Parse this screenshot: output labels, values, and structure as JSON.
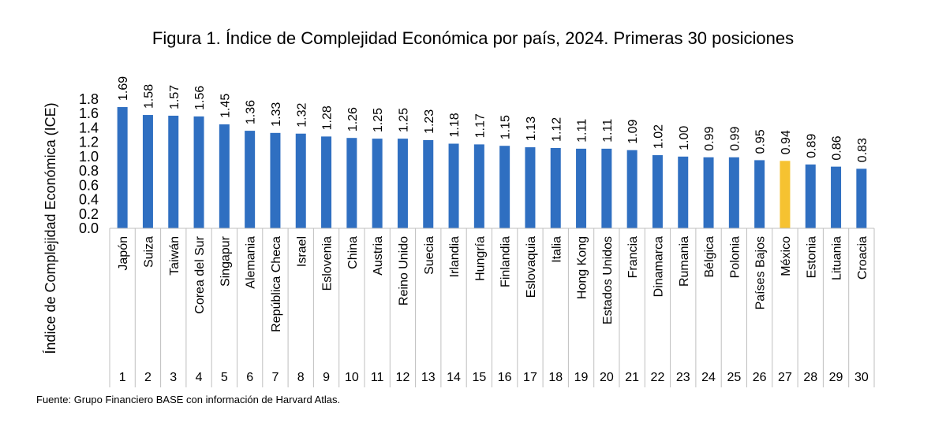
{
  "chart_data": {
    "type": "bar",
    "title": "Figura 1. Índice de Complejidad Económica por país, 2024. Primeras 30 posiciones",
    "ylabel": "Índice de Complejidad Económica (ICE)",
    "xlabel": "",
    "ylim": [
      0,
      1.8
    ],
    "yticks": [
      "0.0",
      "0.2",
      "0.4",
      "0.6",
      "0.8",
      "1.0",
      "1.2",
      "1.4",
      "1.6",
      "1.8"
    ],
    "categories": [
      "Japón",
      "Suiza",
      "Taiwán",
      "Corea del Sur",
      "Singapur",
      "Alemania",
      "República Checa",
      "Israel",
      "Eslovenia",
      "China",
      "Austria",
      "Reino Unido",
      "Suecia",
      "Irlandia",
      "Hungría",
      "Finlandia",
      "Eslovaquia",
      "Italia",
      "Hong Kong",
      "Estados Unidos",
      "Francia",
      "Dinamarca",
      "Rumania",
      "Bélgica",
      "Polonia",
      "Países Bajos",
      "México",
      "Estonia",
      "Lituania",
      "Croacia"
    ],
    "ranks": [
      "1",
      "2",
      "3",
      "4",
      "5",
      "6",
      "7",
      "8",
      "9",
      "10",
      "11",
      "12",
      "13",
      "14",
      "15",
      "16",
      "17",
      "18",
      "19",
      "20",
      "21",
      "22",
      "23",
      "24",
      "25",
      "26",
      "27",
      "28",
      "29",
      "30"
    ],
    "values": [
      1.69,
      1.58,
      1.57,
      1.56,
      1.45,
      1.36,
      1.33,
      1.32,
      1.28,
      1.26,
      1.25,
      1.25,
      1.23,
      1.18,
      1.17,
      1.15,
      1.13,
      1.12,
      1.11,
      1.11,
      1.09,
      1.02,
      1.0,
      0.99,
      0.99,
      0.95,
      0.94,
      0.89,
      0.86,
      0.83
    ],
    "value_labels": [
      "1.69",
      "1.58",
      "1.57",
      "1.56",
      "1.45",
      "1.36",
      "1.33",
      "1.32",
      "1.28",
      "1.26",
      "1.25",
      "1.25",
      "1.23",
      "1.18",
      "1.17",
      "1.15",
      "1.13",
      "1.12",
      "1.11",
      "1.11",
      "1.09",
      "1.02",
      "1.00",
      "0.99",
      "0.99",
      "0.95",
      "0.94",
      "0.89",
      "0.86",
      "0.83"
    ],
    "highlight": "México",
    "colors": {
      "bar": "#2F6FC1",
      "highlight": "#F6C231",
      "grid": "#d0d0d0"
    },
    "grid": false,
    "source": "Fuente: Grupo Financiero BASE con información de Harvard Atlas."
  }
}
